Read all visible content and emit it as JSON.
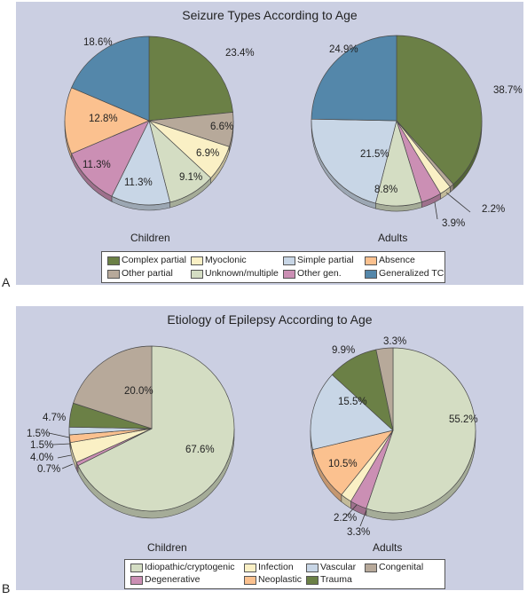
{
  "colors": {
    "complex_partial": "#6b8046",
    "other_partial": "#b7a99a",
    "myoclonic": "#faf0c5",
    "unknown_multiple": "#d4ddc3",
    "simple_partial": "#c8d6e6",
    "other_gen": "#cb8fb4",
    "absence": "#fbc18f",
    "generalized_tc": "#5487aa",
    "idiopathic": "#d4ddc3",
    "degenerative": "#cb8fb4",
    "infection": "#faf0c5",
    "neoplastic": "#fbc18f",
    "vascular": "#c8d6e6",
    "trauma": "#6b8046",
    "congenital": "#b7a99a"
  },
  "chart_data": [
    {
      "type": "pie",
      "panel_label": "A",
      "title": "Seizure Types According to Age",
      "legend_entries": [
        {
          "key": "complex_partial",
          "label": "Complex partial"
        },
        {
          "key": "myoclonic",
          "label": "Myoclonic"
        },
        {
          "key": "simple_partial",
          "label": "Simple partial"
        },
        {
          "key": "absence",
          "label": "Absence"
        },
        {
          "key": "other_partial",
          "label": "Other partial"
        },
        {
          "key": "unknown_multiple",
          "label": "Unknown/multiple"
        },
        {
          "key": "other_gen",
          "label": "Other gen."
        },
        {
          "key": "generalized_tc",
          "label": "Generalized TC"
        }
      ],
      "pies": [
        {
          "name": "Children",
          "slices": [
            {
              "key": "complex_partial",
              "value": 23.4,
              "label": "23.4%"
            },
            {
              "key": "other_partial",
              "value": 6.6,
              "label": "6.6%"
            },
            {
              "key": "myoclonic",
              "value": 6.9,
              "label": "6.9%"
            },
            {
              "key": "unknown_multiple",
              "value": 9.1,
              "label": "9.1%"
            },
            {
              "key": "simple_partial",
              "value": 11.3,
              "label": "11.3%"
            },
            {
              "key": "other_gen",
              "value": 11.3,
              "label": "11.3%"
            },
            {
              "key": "absence",
              "value": 12.8,
              "label": "12.8%"
            },
            {
              "key": "generalized_tc",
              "value": 18.6,
              "label": "18.6%"
            }
          ]
        },
        {
          "name": "Adults",
          "slices": [
            {
              "key": "complex_partial",
              "value": 38.7,
              "label": "38.7%"
            },
            {
              "key": "other_partial",
              "value": 0.8,
              "label": ""
            },
            {
              "key": "myoclonic",
              "value": 2.2,
              "label": "2.2%"
            },
            {
              "key": "other_gen",
              "value": 3.9,
              "label": "3.9%"
            },
            {
              "key": "unknown_multiple",
              "value": 8.8,
              "label": "8.8%"
            },
            {
              "key": "simple_partial",
              "value": 21.5,
              "label": "21.5%"
            },
            {
              "key": "generalized_tc",
              "value": 24.9,
              "label": "24.9%"
            }
          ]
        }
      ]
    },
    {
      "type": "pie",
      "panel_label": "B",
      "title": "Etiology of Epilepsy According to Age",
      "legend_entries": [
        {
          "key": "idiopathic",
          "label": "Idiopathic/cryptogenic"
        },
        {
          "key": "infection",
          "label": "Infection"
        },
        {
          "key": "vascular",
          "label": "Vascular"
        },
        {
          "key": "congenital",
          "label": "Congenital"
        },
        {
          "key": "degenerative",
          "label": "Degenerative"
        },
        {
          "key": "neoplastic",
          "label": "Neoplastic"
        },
        {
          "key": "trauma",
          "label": "Trauma"
        }
      ],
      "pies": [
        {
          "name": "Children",
          "slices": [
            {
              "key": "idiopathic",
              "value": 67.6,
              "label": "67.6%"
            },
            {
              "key": "degenerative",
              "value": 0.7,
              "label": "0.7%"
            },
            {
              "key": "infection",
              "value": 4.0,
              "label": "4.0%"
            },
            {
              "key": "neoplastic",
              "value": 1.5,
              "label": "1.5%"
            },
            {
              "key": "vascular",
              "value": 1.5,
              "label": "1.5%"
            },
            {
              "key": "trauma",
              "value": 4.7,
              "label": "4.7%"
            },
            {
              "key": "congenital",
              "value": 20.0,
              "label": "20.0%"
            }
          ]
        },
        {
          "name": "Adults",
          "slices": [
            {
              "key": "idiopathic",
              "value": 55.2,
              "label": "55.2%"
            },
            {
              "key": "degenerative",
              "value": 3.3,
              "label": "3.3%"
            },
            {
              "key": "infection",
              "value": 2.2,
              "label": "2.2%"
            },
            {
              "key": "neoplastic",
              "value": 10.5,
              "label": "10.5%"
            },
            {
              "key": "vascular",
              "value": 15.5,
              "label": "15.5%"
            },
            {
              "key": "trauma",
              "value": 9.9,
              "label": "9.9%"
            },
            {
              "key": "congenital",
              "value": 3.3,
              "label": "3.3%"
            }
          ]
        }
      ]
    }
  ]
}
